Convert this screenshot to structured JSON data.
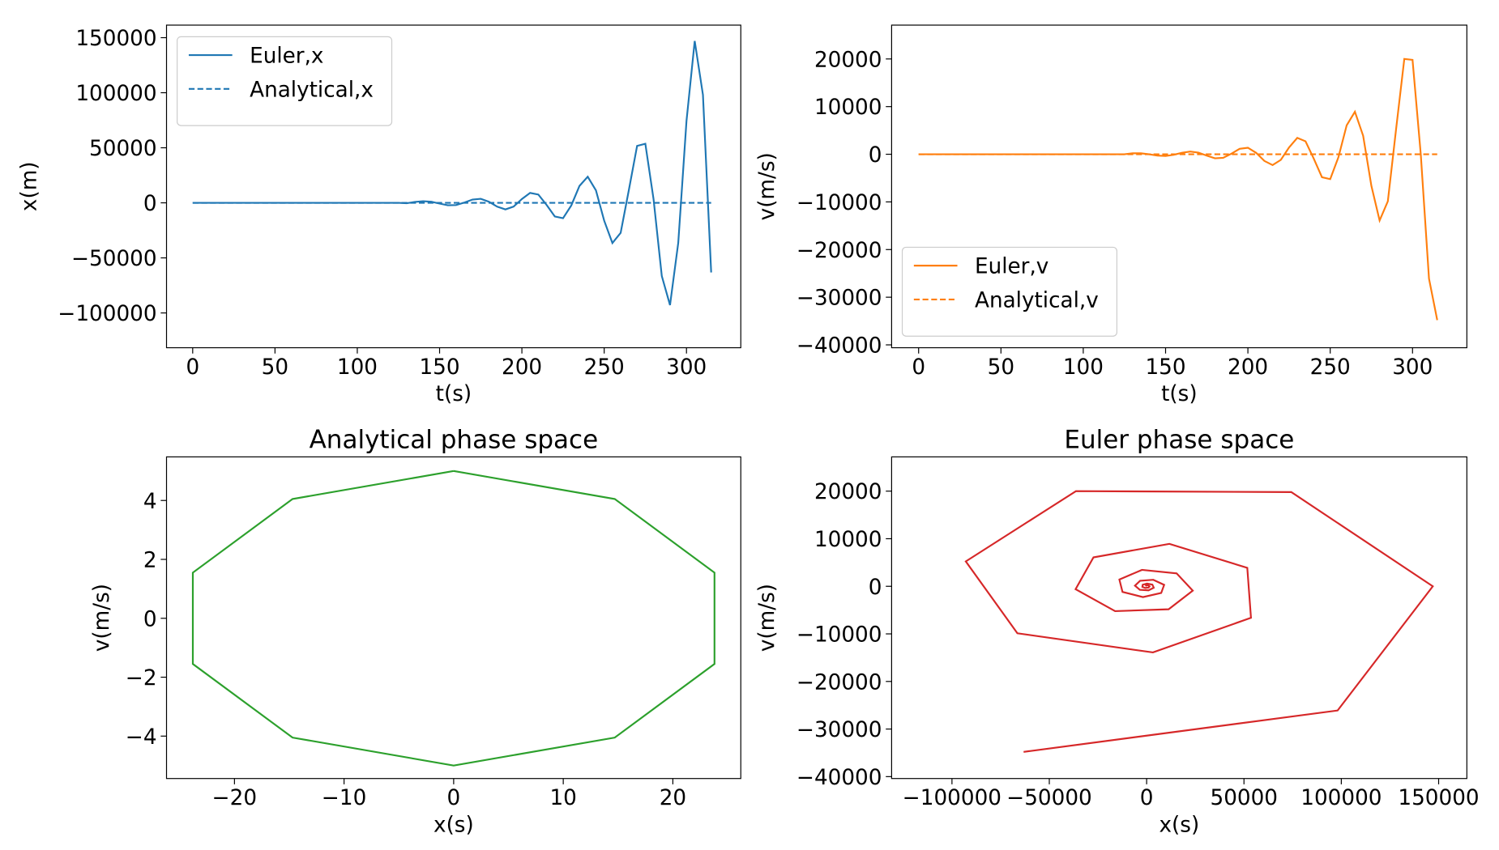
{
  "chart_data": [
    {
      "type": "line",
      "xlabel": "t(s)",
      "ylabel": "x(m)",
      "legend": "upper left",
      "x": [
        0,
        5,
        10,
        15,
        20,
        25,
        30,
        35,
        40,
        45,
        50,
        55,
        60,
        65,
        70,
        75,
        80,
        85,
        90,
        95,
        100,
        105,
        110,
        115,
        120,
        125,
        130,
        135,
        140,
        145,
        150,
        155,
        160,
        165,
        170,
        175,
        180,
        185,
        190,
        195,
        200,
        205,
        210,
        215,
        220,
        225,
        230,
        235,
        240,
        245,
        250,
        255,
        260,
        265,
        270,
        275,
        280,
        285,
        290,
        295,
        300,
        305,
        310,
        315
      ],
      "series": [
        {
          "name": "Euler,x",
          "color": "#1f77b4",
          "linestyle": "solid",
          "values": [
            0,
            0,
            0,
            0,
            0,
            0,
            0,
            0,
            0,
            0,
            0,
            0,
            0,
            0,
            0,
            0,
            0,
            0,
            0,
            0,
            0,
            0,
            0,
            0,
            0,
            0,
            -343,
            788,
            1500,
            966,
            -695,
            -2200,
            -2020,
            211,
            2950,
            3660,
            987,
            -3510,
            -5990,
            -3360,
            3430,
            9000,
            7490,
            -1890,
            -12400,
            -14000,
            -2400,
            15400,
            23700,
            11300,
            -16200,
            -36500,
            -27300,
            11700,
            51700,
            53600,
            3230,
            -66400,
            -92900,
            -36300,
            74300,
            147000,
            98100,
            -63200
          ]
        },
        {
          "name": "Analytical,x",
          "color": "#1f77b4",
          "linestyle": "dashed",
          "values": [
            0,
            0,
            0,
            0,
            0,
            0,
            0,
            0,
            0,
            0,
            0,
            0,
            0,
            0,
            0,
            0,
            0,
            0,
            0,
            0,
            0,
            0,
            0,
            0,
            0,
            0,
            0,
            0,
            0,
            0,
            0,
            0,
            0,
            0,
            0,
            0,
            0,
            0,
            0,
            0,
            0,
            0,
            0,
            0,
            0,
            0,
            0,
            0,
            0,
            0,
            0,
            0,
            0,
            0,
            0,
            0,
            0,
            0,
            0,
            0,
            0,
            0,
            0,
            0
          ]
        }
      ],
      "xlim": [
        -15.9,
        333
      ],
      "ylim": [
        -131600,
        161400
      ],
      "xticks": [
        0,
        50,
        100,
        150,
        200,
        250,
        300
      ],
      "yticks": [
        {
          "value": -100000,
          "label": "−100000"
        },
        {
          "value": -50000,
          "label": "−50000"
        },
        0,
        50000,
        100000,
        150000
      ]
    },
    {
      "type": "line",
      "xlabel": "t(s)",
      "ylabel": "v(m/s)",
      "legend": "lower left",
      "x": [
        0,
        5,
        10,
        15,
        20,
        25,
        30,
        35,
        40,
        45,
        50,
        55,
        60,
        65,
        70,
        75,
        80,
        85,
        90,
        95,
        100,
        105,
        110,
        115,
        120,
        125,
        130,
        135,
        140,
        145,
        150,
        155,
        160,
        165,
        170,
        175,
        180,
        185,
        190,
        195,
        200,
        205,
        210,
        215,
        220,
        225,
        230,
        235,
        240,
        245,
        250,
        255,
        260,
        265,
        270,
        275,
        280,
        285,
        290,
        295,
        300,
        305,
        310,
        315
      ],
      "series": [
        {
          "name": "Euler,v",
          "color": "#ff7f0e",
          "linestyle": "solid",
          "values": [
            0,
            0,
            0,
            0,
            0,
            0,
            0,
            0,
            0,
            0,
            0,
            0,
            0,
            0,
            0,
            0,
            0,
            0,
            0,
            0,
            0,
            0,
            0,
            0,
            0,
            0,
            206,
            199,
            -7,
            -272,
            -353,
            -112,
            317,
            571,
            343,
            -295,
            -847,
            -741,
            129,
            1152,
            1366,
            302,
            -1400,
            -2270,
            -1180,
            1420,
            3450,
            2720,
            -915,
            -4830,
            -5220,
            -605,
            6080,
            8920,
            3880,
            -6620,
            -13900,
            -9870,
            5230,
            20000,
            19800,
            0,
            -26100,
            -34800
          ]
        },
        {
          "name": "Analytical,v",
          "color": "#ff7f0e",
          "linestyle": "dashed",
          "values": [
            0,
            0,
            0,
            0,
            0,
            0,
            0,
            0,
            0,
            0,
            0,
            0,
            0,
            0,
            0,
            0,
            0,
            0,
            0,
            0,
            0,
            0,
            0,
            0,
            0,
            0,
            0,
            0,
            0,
            0,
            0,
            0,
            0,
            0,
            0,
            0,
            0,
            0,
            0,
            0,
            0,
            0,
            0,
            0,
            0,
            0,
            0,
            0,
            0,
            0,
            0,
            0,
            0,
            0,
            0,
            0,
            0,
            0,
            0,
            0,
            0,
            0,
            0,
            0
          ]
        }
      ],
      "xlim": [
        -16.4,
        333
      ],
      "ylim": [
        -40600,
        27100
      ],
      "xticks": [
        0,
        50,
        100,
        150,
        200,
        250,
        300
      ],
      "yticks": [
        {
          "value": -40000,
          "label": "−40000"
        },
        {
          "value": -30000,
          "label": "−30000"
        },
        {
          "value": -20000,
          "label": "−20000"
        },
        {
          "value": -10000,
          "label": "−10000"
        },
        0,
        10000,
        20000
      ]
    },
    {
      "type": "line",
      "title": "Analytical phase space",
      "xlabel": "x(s)",
      "ylabel": "v(m/s)",
      "x": [
        0,
        14.7,
        23.8,
        23.8,
        14.7,
        0,
        -14.7,
        -23.8,
        -23.8,
        -14.7,
        0
      ],
      "series": [
        {
          "color": "#2ca02c",
          "linestyle": "solid",
          "values": [
            5,
            4.05,
            1.55,
            -1.55,
            -4.05,
            -5,
            -4.05,
            -1.55,
            1.55,
            4.05,
            5
          ]
        }
      ],
      "xlim": [
        -26.2,
        26.2
      ],
      "ylim": [
        -5.44,
        5.48
      ],
      "xticks": [
        {
          "value": -20,
          "label": "−20"
        },
        {
          "value": -10,
          "label": "−10"
        },
        0,
        10,
        20
      ],
      "yticks": [
        {
          "value": -4,
          "label": "−4"
        },
        {
          "value": -2,
          "label": "−2"
        },
        0,
        2,
        4
      ]
    },
    {
      "type": "line",
      "title": "Euler phase space",
      "xlabel": "x(s)",
      "ylabel": "v(m/s)",
      "x": [
        0,
        0,
        0,
        0,
        0,
        0,
        0,
        0,
        0,
        0,
        0,
        0,
        0,
        0,
        0,
        0,
        0,
        0,
        0,
        0,
        0,
        0,
        0,
        0,
        0,
        0,
        -343,
        788,
        1500,
        966,
        -695,
        -2200,
        -2020,
        211,
        2950,
        3660,
        987,
        -3510,
        -5990,
        -3360,
        3430,
        9000,
        7490,
        -1890,
        -12400,
        -14000,
        -2400,
        15400,
        23700,
        11300,
        -16200,
        -36500,
        -27300,
        11700,
        51700,
        53600,
        3230,
        -66400,
        -92900,
        -36300,
        74300,
        147000,
        98100,
        -63200
      ],
      "series": [
        {
          "color": "#d62728",
          "linestyle": "solid",
          "values": [
            0,
            0,
            0,
            0,
            0,
            0,
            0,
            0,
            0,
            0,
            0,
            0,
            0,
            0,
            0,
            0,
            0,
            0,
            0,
            0,
            0,
            0,
            0,
            0,
            0,
            0,
            206,
            199,
            -7,
            -272,
            -353,
            -112,
            317,
            571,
            343,
            -295,
            -847,
            -741,
            129,
            1152,
            1366,
            302,
            -1400,
            -2270,
            -1180,
            1420,
            3450,
            2720,
            -915,
            -4830,
            -5220,
            -605,
            6080,
            8920,
            3880,
            -6620,
            -13900,
            -9870,
            5230,
            20000,
            19800,
            0,
            -26100,
            -34800
          ]
        }
      ],
      "xlim": [
        -131000,
        164500
      ],
      "ylim": [
        -40400,
        27200
      ],
      "xticks": [
        {
          "value": -100000,
          "label": "−100000"
        },
        {
          "value": -50000,
          "label": "−50000"
        },
        0,
        50000,
        100000,
        150000
      ],
      "yticks": [
        {
          "value": -40000,
          "label": "−40000"
        },
        {
          "value": -30000,
          "label": "−30000"
        },
        {
          "value": -20000,
          "label": "−20000"
        },
        {
          "value": -10000,
          "label": "−10000"
        },
        0,
        10000,
        20000
      ]
    }
  ]
}
